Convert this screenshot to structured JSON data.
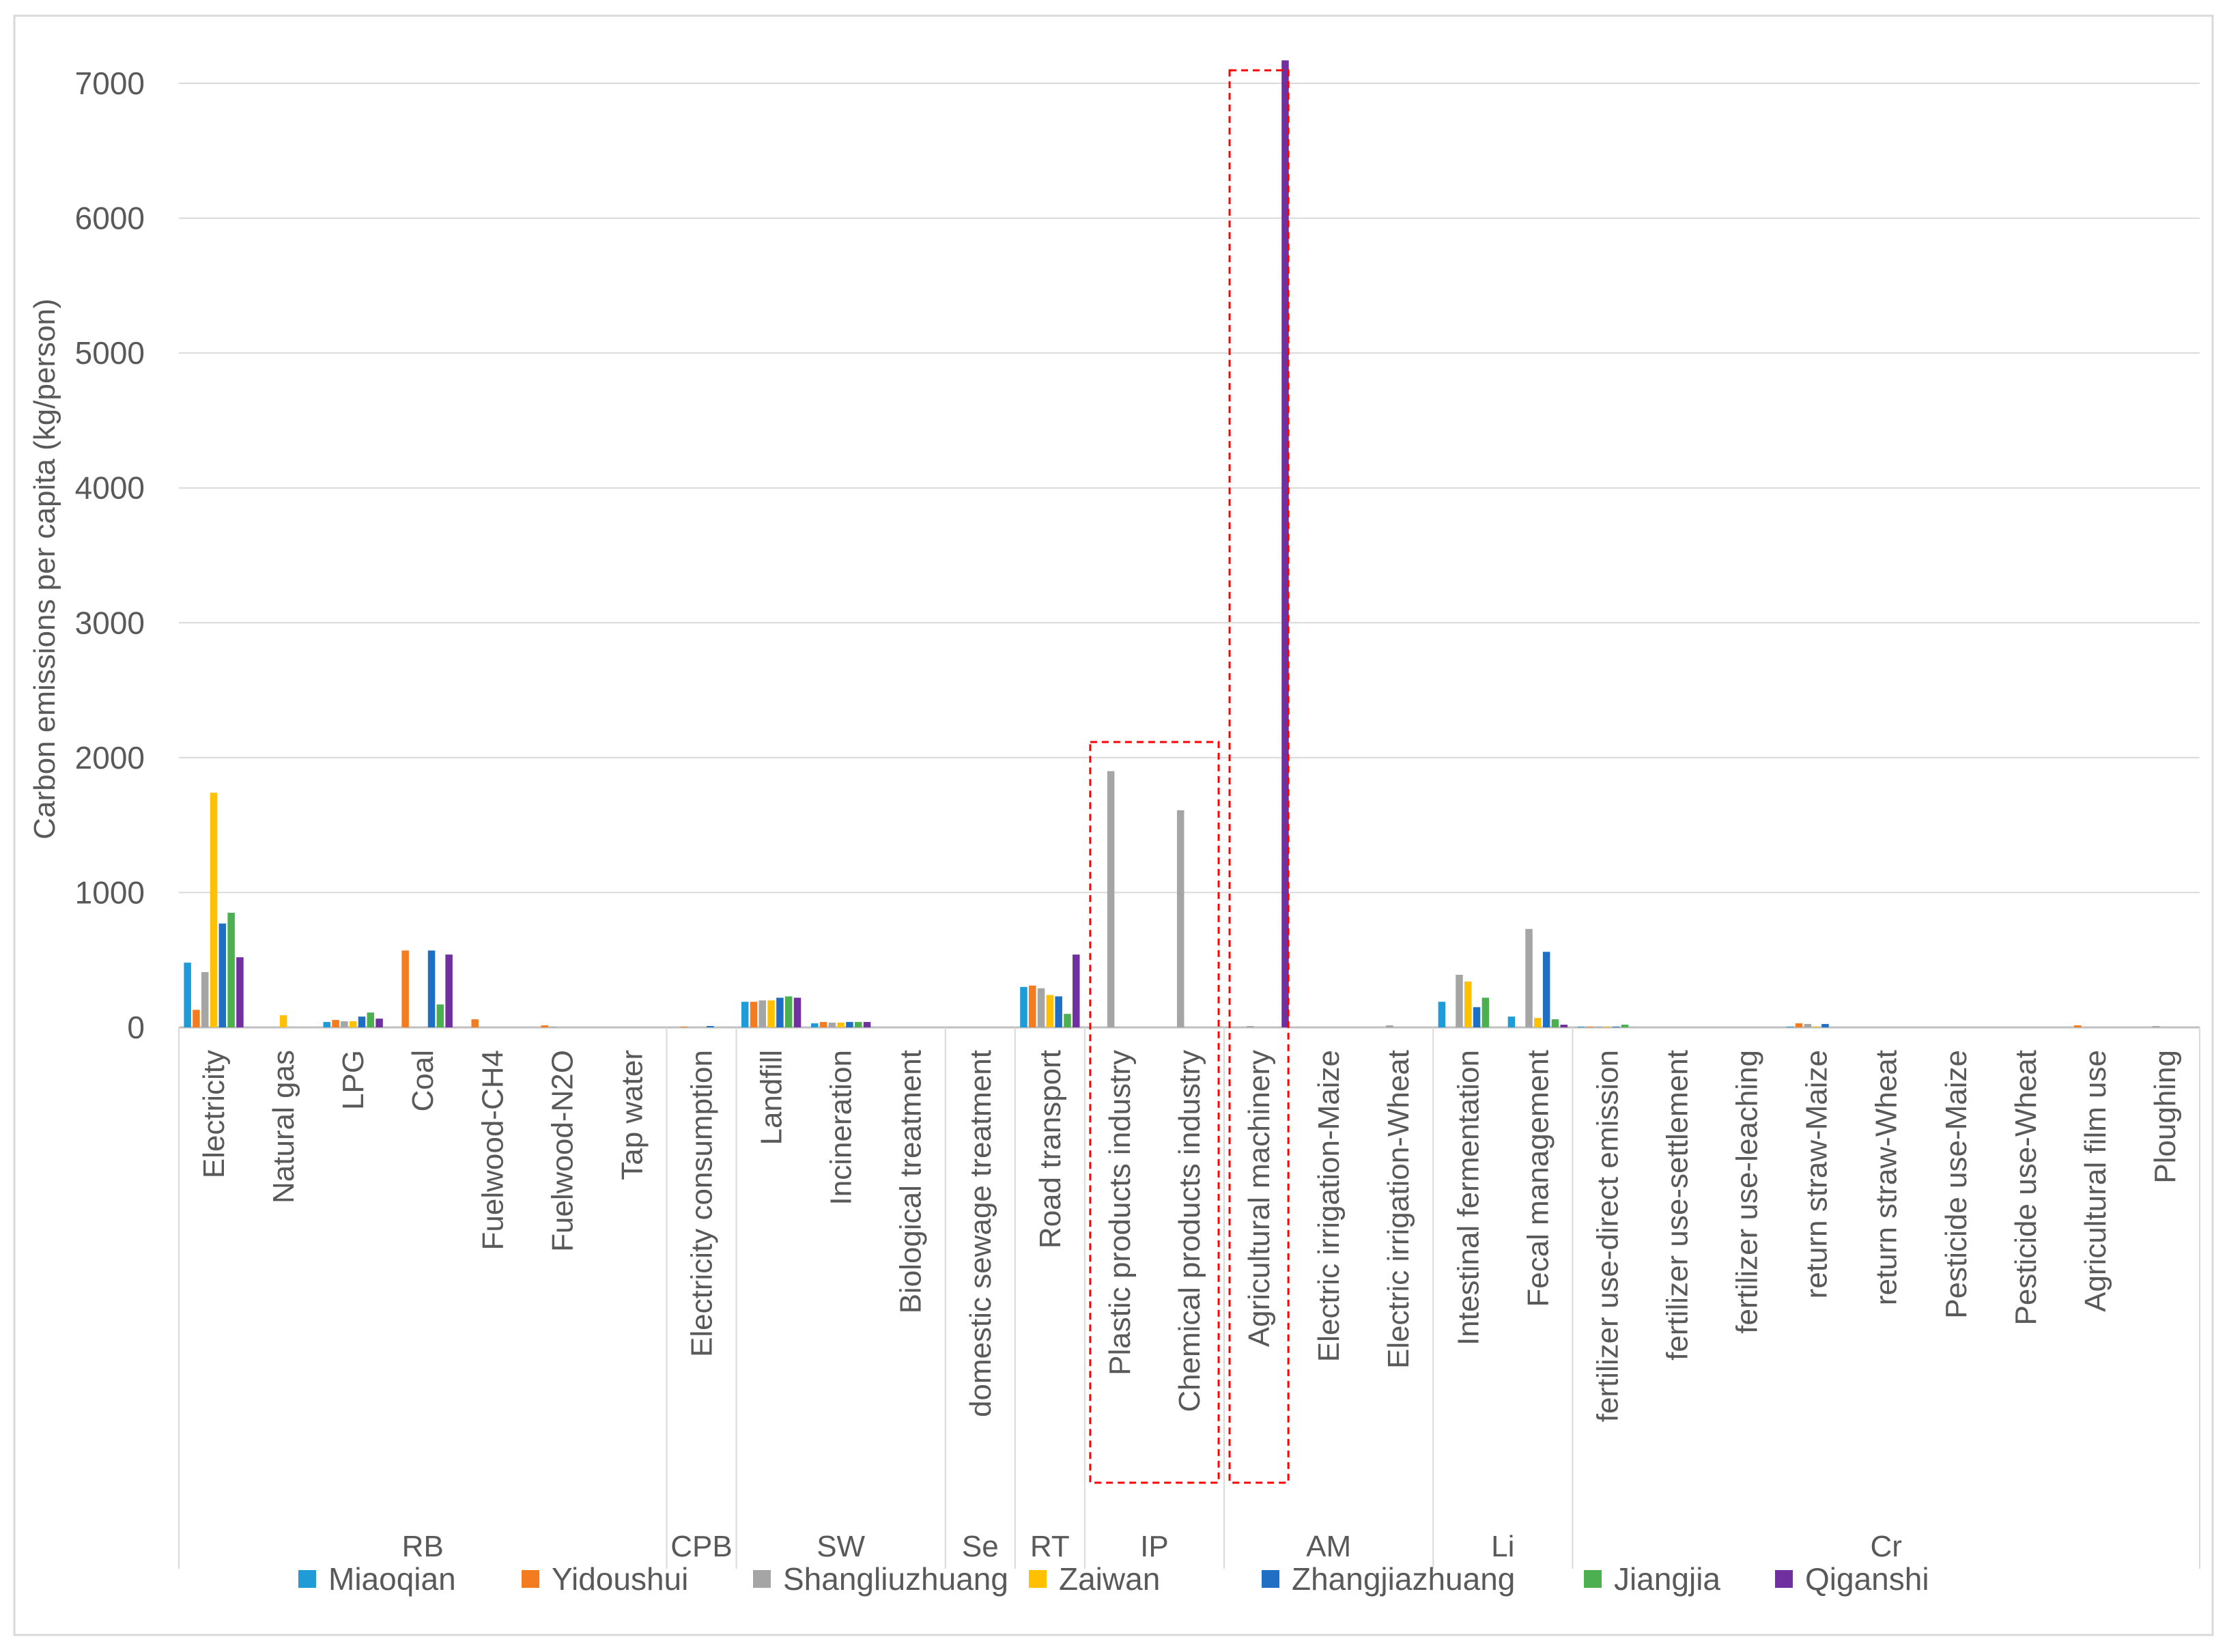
{
  "chart_data": {
    "type": "bar",
    "title": "",
    "xlabel": "",
    "ylabel": "Carbon emissions per capita  (kg/person)",
    "ylim": [
      0,
      7000
    ],
    "yticks": [
      "0",
      "1000",
      "2000",
      "3000",
      "4000",
      "5000",
      "6000",
      "7000"
    ],
    "grid": true,
    "legend_position": "bottom",
    "categories": [
      "Electricity",
      "Natural gas",
      "LPG",
      "Coal",
      "Fuelwood-CH4",
      "Fuelwood-N2O",
      "Tap water",
      "Electricity consumption",
      "Landfill",
      "Incineration",
      "Biological treatment",
      "domestic sewage treatment",
      "Road transport",
      "Plastic products industry",
      "Chemical products industry",
      "Agricultural machinery",
      "Electric irrigation-Maize",
      "Electric irrigation-Wheat",
      "Intestinal fermentation",
      "Fecal management",
      "fertilizer use-direct emission",
      "fertilizer use-settlement",
      "fertilizer use-leaching",
      "return straw-Maize",
      "return straw-Wheat",
      "Pesticide use-Maize",
      "Pesticide use-Wheat",
      "Agricultural film use",
      "Ploughing"
    ],
    "groups": [
      {
        "label": "RB",
        "count": 7
      },
      {
        "label": "CPB",
        "count": 1
      },
      {
        "label": "SW",
        "count": 3
      },
      {
        "label": "Se",
        "count": 1
      },
      {
        "label": "RT",
        "count": 1
      },
      {
        "label": "IP",
        "count": 2
      },
      {
        "label": "AM",
        "count": 3
      },
      {
        "label": "Li",
        "count": 2
      },
      {
        "label": "Cr",
        "count": 9
      }
    ],
    "highlight_boxes": [
      {
        "from": 13,
        "to": 14
      },
      {
        "from": 15,
        "to": 15
      }
    ],
    "series": [
      {
        "name": "Miaoqian",
        "color": "#1f9bd7",
        "values": [
          480,
          0,
          40,
          0,
          0,
          0,
          0,
          0,
          190,
          30,
          0,
          0,
          300,
          0,
          0,
          0,
          0,
          0,
          190,
          80,
          5,
          0,
          0,
          5,
          0,
          0,
          0,
          0,
          0
        ]
      },
      {
        "name": "Yidoushui",
        "color": "#f47b20",
        "values": [
          130,
          0,
          55,
          570,
          60,
          15,
          0,
          5,
          190,
          40,
          0,
          0,
          310,
          0,
          0,
          0,
          0,
          0,
          0,
          0,
          5,
          0,
          0,
          30,
          0,
          0,
          0,
          15,
          0
        ]
      },
      {
        "name": "Shangliuzhuang",
        "color": "#a5a5a5",
        "values": [
          410,
          0,
          45,
          0,
          0,
          5,
          0,
          0,
          200,
          35,
          0,
          0,
          290,
          1900,
          1610,
          10,
          0,
          15,
          390,
          730,
          5,
          0,
          0,
          25,
          0,
          0,
          0,
          0,
          10
        ]
      },
      {
        "name": "Zaiwan",
        "color": "#ffc000",
        "values": [
          1740,
          90,
          45,
          0,
          0,
          0,
          0,
          0,
          200,
          35,
          0,
          0,
          240,
          0,
          0,
          0,
          0,
          0,
          340,
          70,
          5,
          0,
          0,
          5,
          0,
          0,
          0,
          0,
          0
        ]
      },
      {
        "name": "Zhangjiazhuang",
        "color": "#1f6fc5",
        "values": [
          770,
          0,
          80,
          570,
          0,
          0,
          0,
          10,
          220,
          40,
          0,
          0,
          230,
          0,
          0,
          0,
          0,
          0,
          150,
          560,
          5,
          0,
          0,
          25,
          0,
          0,
          0,
          0,
          0
        ]
      },
      {
        "name": "Jiangjia",
        "color": "#4caf50",
        "values": [
          850,
          0,
          110,
          170,
          0,
          0,
          0,
          0,
          230,
          40,
          0,
          0,
          100,
          0,
          0,
          0,
          0,
          0,
          220,
          60,
          20,
          0,
          0,
          0,
          0,
          0,
          0,
          0,
          0
        ]
      },
      {
        "name": "Qiganshi",
        "color": "#7030a0",
        "values": [
          520,
          0,
          65,
          540,
          0,
          0,
          0,
          0,
          220,
          40,
          0,
          0,
          540,
          0,
          0,
          7170,
          0,
          0,
          0,
          20,
          0,
          0,
          0,
          0,
          0,
          0,
          0,
          0,
          0
        ]
      }
    ]
  }
}
